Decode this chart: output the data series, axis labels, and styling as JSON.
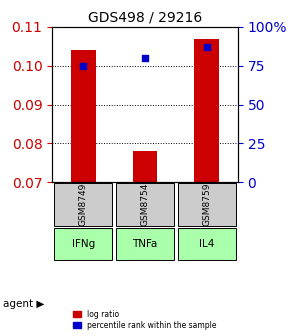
{
  "title": "GDS498 / 29216",
  "samples": [
    "GSM8749",
    "GSM8754",
    "GSM8759"
  ],
  "agents": [
    "IFNg",
    "TNFa",
    "IL4"
  ],
  "log_ratios": [
    0.104,
    0.078,
    0.107
  ],
  "percentile_ranks": [
    75,
    80,
    87
  ],
  "y_min": 0.07,
  "y_max": 0.11,
  "y_ticks": [
    0.07,
    0.08,
    0.09,
    0.1,
    0.11
  ],
  "right_y_ticks": [
    0,
    25,
    50,
    75,
    100
  ],
  "right_y_labels": [
    "0",
    "25",
    "50",
    "75",
    "100%"
  ],
  "bar_color": "#cc0000",
  "percentile_color": "#0000cc",
  "agent_color": "#aaffaa",
  "sample_bg_color": "#cccccc",
  "left_tick_color": "#cc0000",
  "right_tick_color": "#0000cc",
  "bar_width": 0.4,
  "legend_bar_label": "log ratio",
  "legend_dot_label": "percentile rank within the sample"
}
